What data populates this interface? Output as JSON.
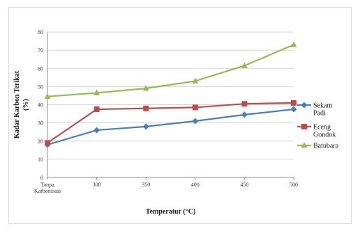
{
  "chart_data": {
    "type": "line",
    "xlabel": "Temperatur (°C)",
    "ylabel": "Kadar Karbon Terikat",
    "ylabel_line2": "(%)",
    "categories": [
      [
        "Tanpa",
        "Karbonisasi"
      ],
      [
        "300"
      ],
      [
        "350"
      ],
      [
        "400"
      ],
      [
        "450"
      ],
      [
        "500"
      ]
    ],
    "ylim": [
      0,
      80
    ],
    "yticks": [
      0,
      10,
      20,
      30,
      40,
      50,
      60,
      70,
      80
    ],
    "grid": true,
    "legend_position": "right",
    "series": [
      {
        "name": [
          "Sekam",
          "Padi"
        ],
        "color": "#4a7ebb",
        "marker": "diamond",
        "values": [
          18,
          26,
          28,
          31,
          34.5,
          37.5
        ]
      },
      {
        "name": [
          "Eceng",
          "Gondok"
        ],
        "color": "#be4b48",
        "marker": "square",
        "values": [
          19,
          37.5,
          38,
          38.5,
          40.5,
          41
        ]
      },
      {
        "name": [
          "Batubara"
        ],
        "color": "#98b954",
        "marker": "triangle",
        "values": [
          44.5,
          46.5,
          49,
          53,
          61.5,
          73
        ]
      }
    ]
  }
}
